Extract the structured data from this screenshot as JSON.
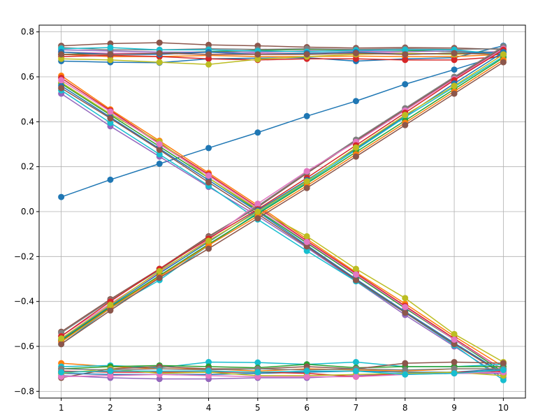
{
  "chart_data": {
    "type": "line",
    "title": "",
    "xlabel": "",
    "ylabel": "",
    "x": [
      1,
      2,
      3,
      4,
      5,
      6,
      7,
      8,
      9,
      10
    ],
    "xlim": [
      0.55,
      10.45
    ],
    "ylim": [
      -0.83,
      0.83
    ],
    "x_ticks": [
      "1",
      "2",
      "3",
      "4",
      "5",
      "6",
      "7",
      "8",
      "9",
      "10"
    ],
    "y_tick_values": [
      -0.8,
      -0.6,
      -0.4,
      -0.2,
      0.0,
      0.2,
      0.4,
      0.6,
      0.8
    ],
    "y_ticks": [
      "−0.8",
      "−0.6",
      "−0.4",
      "−0.2",
      "0.0",
      "0.2",
      "0.4",
      "0.6",
      "0.8"
    ],
    "grid": true,
    "legend": false,
    "marker": "circle",
    "series": [
      {
        "color": "#1f77b4",
        "values": [
          0.065,
          0.142,
          0.213,
          0.283,
          0.352,
          0.425,
          0.492,
          0.567,
          0.632,
          0.7
        ]
      },
      {
        "color": "#1f77b4",
        "values": [
          0.67,
          0.665,
          0.663,
          0.68,
          0.683,
          0.685,
          0.67,
          0.68,
          0.685,
          0.738
        ]
      },
      {
        "color": "#ff7f0e",
        "values": [
          0.7,
          0.69,
          0.69,
          0.695,
          0.69,
          0.69,
          0.692,
          0.69,
          0.69,
          0.7
        ]
      },
      {
        "color": "#2ca02c",
        "values": [
          0.7,
          0.705,
          0.705,
          0.712,
          0.718,
          0.722,
          0.72,
          0.718,
          0.712,
          0.71
        ]
      },
      {
        "color": "#d62728",
        "values": [
          0.69,
          0.695,
          0.69,
          0.68,
          0.675,
          0.68,
          0.68,
          0.675,
          0.675,
          0.69
        ]
      },
      {
        "color": "#9467bd",
        "values": [
          0.72,
          0.715,
          0.71,
          0.71,
          0.71,
          0.715,
          0.715,
          0.712,
          0.715,
          0.705
        ]
      },
      {
        "color": "#8c564b",
        "values": [
          0.738,
          0.748,
          0.752,
          0.742,
          0.738,
          0.732,
          0.728,
          0.73,
          0.728,
          0.722
        ]
      },
      {
        "color": "#e377c2",
        "values": [
          0.71,
          0.705,
          0.705,
          0.7,
          0.705,
          0.705,
          0.71,
          0.705,
          0.7,
          0.715
        ]
      },
      {
        "color": "#7f7f7f",
        "values": [
          0.73,
          0.72,
          0.72,
          0.725,
          0.722,
          0.725,
          0.722,
          0.725,
          0.722,
          0.725
        ]
      },
      {
        "color": "#bcbd22",
        "values": [
          0.68,
          0.675,
          0.665,
          0.655,
          0.678,
          0.69,
          0.7,
          0.705,
          0.7,
          0.71
        ]
      },
      {
        "color": "#17becf",
        "values": [
          0.725,
          0.73,
          0.72,
          0.72,
          0.715,
          0.712,
          0.718,
          0.72,
          0.72,
          0.7
        ]
      },
      {
        "color": "#1f77b4",
        "values": [
          0.71,
          0.7,
          0.7,
          0.71,
          0.7,
          0.705,
          0.71,
          0.7,
          0.705,
          0.71
        ]
      },
      {
        "color": "#8c564b",
        "values": [
          0.7,
          0.7,
          0.705,
          0.7,
          0.7,
          0.7,
          0.705,
          0.7,
          0.705,
          0.7
        ]
      },
      {
        "color": "#ff7f0e",
        "values": [
          0.605,
          0.455,
          0.315,
          0.172,
          0.028,
          -0.122,
          -0.27,
          -0.41,
          -0.555,
          -0.69
        ]
      },
      {
        "color": "#d62728",
        "values": [
          0.595,
          0.45,
          0.305,
          0.165,
          0.02,
          -0.13,
          -0.275,
          -0.42,
          -0.565,
          -0.705
        ]
      },
      {
        "color": "#2ca02c",
        "values": [
          0.57,
          0.43,
          0.29,
          0.15,
          0.005,
          -0.14,
          -0.285,
          -0.43,
          -0.57,
          -0.715
        ]
      },
      {
        "color": "#9467bd",
        "values": [
          0.525,
          0.38,
          0.245,
          0.11,
          -0.02,
          -0.16,
          -0.31,
          -0.46,
          -0.6,
          -0.74
        ]
      },
      {
        "color": "#17becf",
        "values": [
          0.54,
          0.395,
          0.255,
          0.115,
          -0.035,
          -0.175,
          -0.31,
          -0.45,
          -0.595,
          -0.75
        ]
      },
      {
        "color": "#bcbd22",
        "values": [
          0.575,
          0.435,
          0.31,
          0.15,
          0.01,
          -0.11,
          -0.255,
          -0.385,
          -0.545,
          -0.67
        ]
      },
      {
        "color": "#1f77b4",
        "values": [
          0.56,
          0.42,
          0.28,
          0.14,
          0.0,
          -0.15,
          -0.3,
          -0.445,
          -0.585,
          -0.72
        ]
      },
      {
        "color": "#8c564b",
        "values": [
          0.55,
          0.415,
          0.275,
          0.13,
          -0.01,
          -0.155,
          -0.305,
          -0.45,
          -0.59,
          -0.725
        ]
      },
      {
        "color": "#e377c2",
        "values": [
          0.585,
          0.445,
          0.3,
          0.16,
          0.015,
          -0.135,
          -0.28,
          -0.425,
          -0.57,
          -0.705
        ]
      },
      {
        "color": "#8c564b",
        "values": [
          -0.535,
          -0.39,
          -0.255,
          -0.11,
          0.02,
          0.17,
          0.315,
          0.455,
          0.595,
          0.73
        ]
      },
      {
        "color": "#7f7f7f",
        "values": [
          -0.54,
          -0.395,
          -0.26,
          -0.115,
          0.025,
          0.175,
          0.32,
          0.46,
          0.6,
          0.735
        ]
      },
      {
        "color": "#e377c2",
        "values": [
          -0.555,
          -0.41,
          -0.27,
          -0.125,
          0.035,
          0.18,
          0.31,
          0.45,
          0.59,
          0.725
        ]
      },
      {
        "color": "#d62728",
        "values": [
          -0.555,
          -0.4,
          -0.255,
          -0.12,
          0.01,
          0.15,
          0.295,
          0.44,
          0.585,
          0.72
        ]
      },
      {
        "color": "#1f77b4",
        "values": [
          -0.57,
          -0.42,
          -0.275,
          -0.135,
          0.005,
          0.14,
          0.28,
          0.425,
          0.57,
          0.71
        ]
      },
      {
        "color": "#17becf",
        "values": [
          -0.59,
          -0.43,
          -0.305,
          -0.15,
          -0.005,
          0.13,
          0.275,
          0.42,
          0.555,
          0.69
        ]
      },
      {
        "color": "#2ca02c",
        "values": [
          -0.575,
          -0.425,
          -0.285,
          -0.145,
          -0.01,
          0.125,
          0.265,
          0.405,
          0.545,
          0.685
        ]
      },
      {
        "color": "#ff7f0e",
        "values": [
          -0.58,
          -0.43,
          -0.29,
          -0.15,
          -0.02,
          0.115,
          0.255,
          0.395,
          0.535,
          0.675
        ]
      },
      {
        "color": "#8c564b",
        "values": [
          -0.59,
          -0.44,
          -0.295,
          -0.165,
          -0.03,
          0.105,
          0.245,
          0.385,
          0.525,
          0.665
        ]
      },
      {
        "color": "#bcbd22",
        "values": [
          -0.565,
          -0.415,
          -0.265,
          -0.13,
          0.0,
          0.135,
          0.285,
          0.43,
          0.56,
          0.7
        ]
      },
      {
        "color": "#ff7f0e",
        "values": [
          -0.675,
          -0.69,
          -0.7,
          -0.7,
          -0.71,
          -0.7,
          -0.705,
          -0.71,
          -0.7,
          -0.7
        ]
      },
      {
        "color": "#17becf",
        "values": [
          -0.69,
          -0.685,
          -0.695,
          -0.67,
          -0.672,
          -0.68,
          -0.67,
          -0.69,
          -0.69,
          -0.68
        ]
      },
      {
        "color": "#2ca02c",
        "values": [
          -0.7,
          -0.69,
          -0.685,
          -0.69,
          -0.695,
          -0.68,
          -0.695,
          -0.69,
          -0.69,
          -0.69
        ]
      },
      {
        "color": "#8c564b",
        "values": [
          -0.74,
          -0.7,
          -0.69,
          -0.7,
          -0.7,
          -0.69,
          -0.7,
          -0.675,
          -0.67,
          -0.675
        ]
      },
      {
        "color": "#9467bd",
        "values": [
          -0.73,
          -0.74,
          -0.745,
          -0.745,
          -0.74,
          -0.74,
          -0.73,
          -0.72,
          -0.72,
          -0.72
        ]
      },
      {
        "color": "#1f77b4",
        "values": [
          -0.72,
          -0.725,
          -0.725,
          -0.725,
          -0.72,
          -0.715,
          -0.71,
          -0.715,
          -0.715,
          -0.7
        ]
      },
      {
        "color": "#d62728",
        "values": [
          -0.71,
          -0.715,
          -0.715,
          -0.715,
          -0.715,
          -0.72,
          -0.735,
          -0.72,
          -0.715,
          -0.71
        ]
      },
      {
        "color": "#bcbd22",
        "values": [
          -0.72,
          -0.7,
          -0.72,
          -0.715,
          -0.73,
          -0.73,
          -0.725,
          -0.72,
          -0.715,
          -0.73
        ]
      },
      {
        "color": "#7f7f7f",
        "values": [
          -0.7,
          -0.705,
          -0.7,
          -0.705,
          -0.7,
          -0.705,
          -0.7,
          -0.705,
          -0.7,
          -0.7
        ]
      },
      {
        "color": "#e377c2",
        "values": [
          -0.735,
          -0.73,
          -0.725,
          -0.73,
          -0.735,
          -0.735,
          -0.735,
          -0.725,
          -0.72,
          -0.715
        ]
      },
      {
        "color": "#17becf",
        "values": [
          -0.715,
          -0.71,
          -0.71,
          -0.71,
          -0.715,
          -0.71,
          -0.71,
          -0.725,
          -0.72,
          -0.705
        ]
      }
    ]
  }
}
